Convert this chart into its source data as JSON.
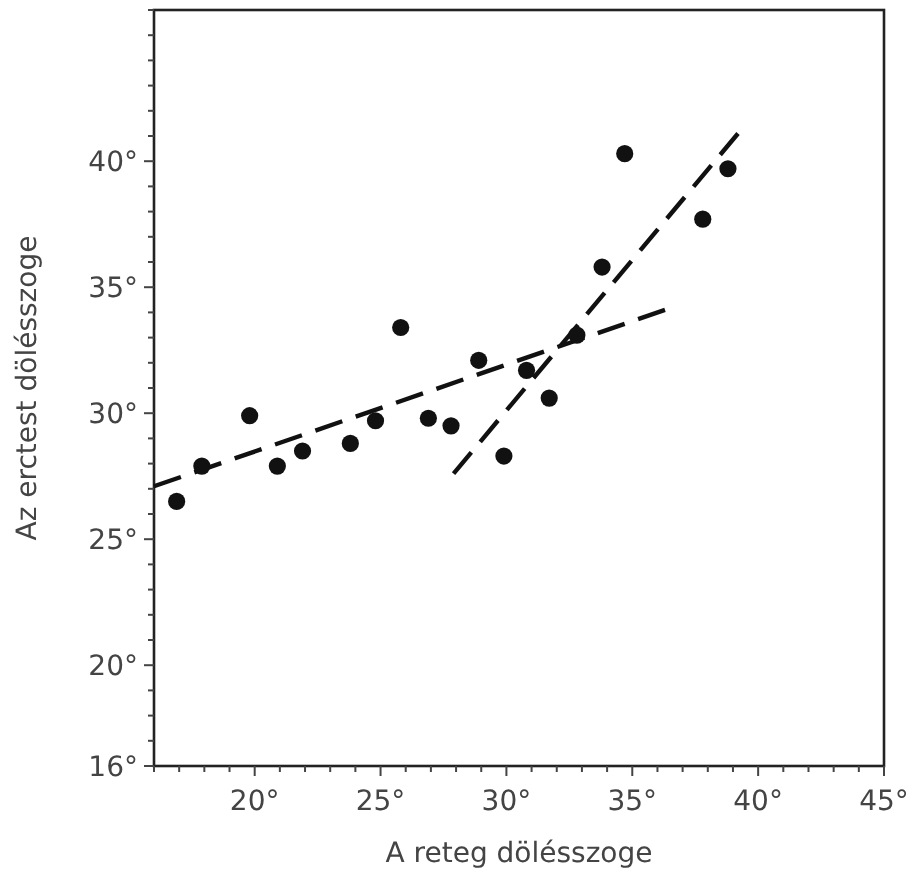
{
  "chart_data": {
    "type": "scatter",
    "xlabel": "A reteg dölésszoge",
    "ylabel": "Az erctest dölésszoge",
    "xlim": [
      16,
      45
    ],
    "ylim": [
      16,
      46
    ],
    "xticks": [
      {
        "value": 16,
        "label": null
      },
      {
        "value": 17,
        "label": null
      },
      {
        "value": 18,
        "label": null
      },
      {
        "value": 19,
        "label": null
      },
      {
        "value": 20,
        "label": "20°"
      },
      {
        "value": 21,
        "label": null
      },
      {
        "value": 22,
        "label": null
      },
      {
        "value": 23,
        "label": null
      },
      {
        "value": 24,
        "label": null
      },
      {
        "value": 25,
        "label": "25°"
      },
      {
        "value": 26,
        "label": null
      },
      {
        "value": 27,
        "label": null
      },
      {
        "value": 28,
        "label": null
      },
      {
        "value": 29,
        "label": null
      },
      {
        "value": 30,
        "label": "30°"
      },
      {
        "value": 31,
        "label": null
      },
      {
        "value": 32,
        "label": null
      },
      {
        "value": 33,
        "label": null
      },
      {
        "value": 34,
        "label": null
      },
      {
        "value": 35,
        "label": "35°"
      },
      {
        "value": 36,
        "label": null
      },
      {
        "value": 37,
        "label": null
      },
      {
        "value": 38,
        "label": null
      },
      {
        "value": 39,
        "label": null
      },
      {
        "value": 40,
        "label": "40°"
      },
      {
        "value": 41,
        "label": null
      },
      {
        "value": 42,
        "label": null
      },
      {
        "value": 43,
        "label": null
      },
      {
        "value": 44,
        "label": null
      },
      {
        "value": 45,
        "label": "45°"
      }
    ],
    "yticks": [
      {
        "value": 16,
        "label": "16°"
      },
      {
        "value": 17,
        "label": null
      },
      {
        "value": 18,
        "label": null
      },
      {
        "value": 19,
        "label": null
      },
      {
        "value": 20,
        "label": "20°"
      },
      {
        "value": 21,
        "label": null
      },
      {
        "value": 22,
        "label": null
      },
      {
        "value": 23,
        "label": null
      },
      {
        "value": 24,
        "label": null
      },
      {
        "value": 25,
        "label": "25°"
      },
      {
        "value": 26,
        "label": null
      },
      {
        "value": 27,
        "label": null
      },
      {
        "value": 28,
        "label": null
      },
      {
        "value": 29,
        "label": null
      },
      {
        "value": 30,
        "label": "30°"
      },
      {
        "value": 31,
        "label": null
      },
      {
        "value": 32,
        "label": null
      },
      {
        "value": 33,
        "label": null
      },
      {
        "value": 34,
        "label": null
      },
      {
        "value": 35,
        "label": "35°"
      },
      {
        "value": 36,
        "label": null
      },
      {
        "value": 37,
        "label": null
      },
      {
        "value": 38,
        "label": null
      },
      {
        "value": 39,
        "label": null
      },
      {
        "value": 40,
        "label": "40°"
      },
      {
        "value": 41,
        "label": null
      },
      {
        "value": 42,
        "label": null
      },
      {
        "value": 43,
        "label": null
      },
      {
        "value": 44,
        "label": null
      },
      {
        "value": 45,
        "label": null
      },
      {
        "value": 46,
        "label": null
      }
    ],
    "grid": false,
    "series": [
      {
        "color": "#111111",
        "marker": "circle",
        "x": [
          16.9,
          17.9,
          19.8,
          20.9,
          21.9,
          23.8,
          24.8,
          25.8,
          26.9,
          27.8,
          28.9,
          29.9,
          30.8,
          31.7,
          32.8,
          33.8,
          34.7,
          37.8,
          38.8
        ],
        "values": [
          26.5,
          27.9,
          29.9,
          27.9,
          28.5,
          28.8,
          29.7,
          33.4,
          29.8,
          29.5,
          32.1,
          28.3,
          31.7,
          30.6,
          33.1,
          35.8,
          40.3,
          37.7,
          39.7
        ]
      },
      {
        "type": "line",
        "color": "#111111",
        "line_style": "dashed",
        "marker": "none",
        "x": [
          16,
          36.3
        ],
        "values": [
          27.1,
          34.1
        ]
      },
      {
        "type": "line",
        "color": "#111111",
        "line_style": "dashed",
        "marker": "none",
        "x": [
          27.9,
          39.2
        ],
        "values": [
          27.6,
          41.1
        ]
      }
    ]
  }
}
